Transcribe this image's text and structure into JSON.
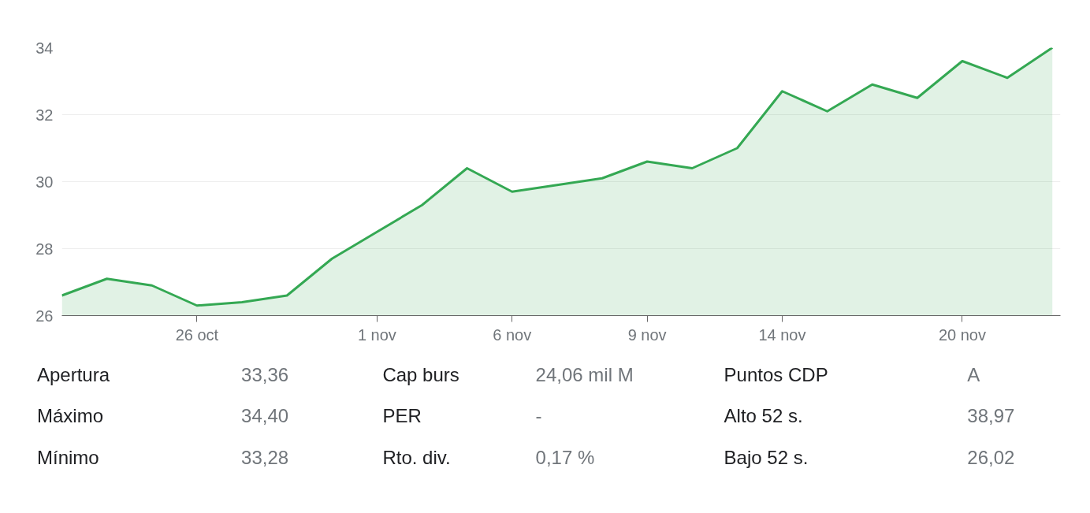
{
  "chart_data": {
    "type": "area",
    "categories": [
      null,
      null,
      null,
      "26 oct",
      null,
      null,
      null,
      "1 nov",
      null,
      null,
      "6 nov",
      null,
      null,
      "9 nov",
      null,
      null,
      "14 nov",
      null,
      null,
      null,
      "20 nov",
      null,
      null
    ],
    "series": [
      {
        "color": "#34a853",
        "values": [
          26.6,
          27.1,
          26.9,
          26.3,
          26.4,
          26.6,
          27.7,
          28.5,
          29.3,
          30.4,
          29.7,
          29.9,
          30.1,
          30.6,
          30.4,
          31.0,
          32.7,
          32.1,
          32.9,
          32.5,
          33.6,
          33.1,
          34.0
        ]
      }
    ],
    "ylim": [
      26,
      34
    ],
    "yticks": [
      26,
      28,
      30,
      32,
      34
    ],
    "grid": "y",
    "annotations": [
      "Apertura",
      "33,36",
      "Cap burs",
      "24,06 mil M",
      "Puntos CDP",
      "A",
      "Máximo",
      "34,40",
      "PER",
      "-",
      "Alto 52 s.",
      "38,97",
      "Mínimo",
      "33,28",
      "Rto. div.",
      "0,17 %",
      "Bajo 52 s.",
      "26,02"
    ]
  }
}
